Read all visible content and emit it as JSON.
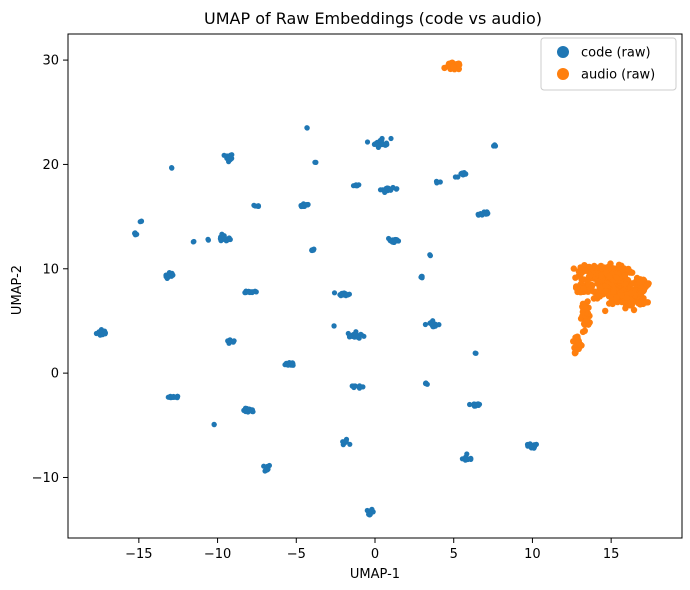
{
  "chart_data": {
    "type": "scatter",
    "title": "UMAP of Raw Embeddings (code vs audio)",
    "xlabel": "UMAP-1",
    "ylabel": "UMAP-2",
    "xlim": [
      -19.5,
      19.5
    ],
    "ylim": [
      -15.8,
      32.5
    ],
    "xticks": [
      -15,
      -10,
      -5,
      0,
      5,
      10,
      15
    ],
    "yticks": [
      -10,
      0,
      10,
      20,
      30
    ],
    "xtick_labels": [
      "−15",
      "−10",
      "−5",
      "0",
      "5",
      "10",
      "15"
    ],
    "ytick_labels": [
      "−10",
      "0",
      "10",
      "20",
      "30"
    ],
    "grid": false,
    "legend_position": "top-right",
    "series": [
      {
        "name": "code (raw)",
        "color": "#1f77b4",
        "clusters": [
          {
            "x": -17.3,
            "y": 3.9,
            "sx": 0.35,
            "sy": 0.35,
            "n": 14
          },
          {
            "x": -14.9,
            "y": 14.5,
            "sx": 0.1,
            "sy": 0.1,
            "n": 3
          },
          {
            "x": -15.2,
            "y": 13.4,
            "sx": 0.1,
            "sy": 0.1,
            "n": 4
          },
          {
            "x": -12.9,
            "y": 19.7,
            "sx": 0.05,
            "sy": 0.05,
            "n": 2
          },
          {
            "x": -13.0,
            "y": 9.3,
            "sx": 0.3,
            "sy": 0.3,
            "n": 12
          },
          {
            "x": -12.8,
            "y": -2.3,
            "sx": 0.3,
            "sy": 0.1,
            "n": 10
          },
          {
            "x": -11.5,
            "y": 12.6,
            "sx": 0.05,
            "sy": 0.05,
            "n": 2
          },
          {
            "x": -10.6,
            "y": 12.8,
            "sx": 0.05,
            "sy": 0.05,
            "n": 2
          },
          {
            "x": -10.2,
            "y": -4.9,
            "sx": 0.05,
            "sy": 0.05,
            "n": 2
          },
          {
            "x": -9.3,
            "y": 20.6,
            "sx": 0.25,
            "sy": 0.4,
            "n": 14
          },
          {
            "x": -9.6,
            "y": 12.9,
            "sx": 0.35,
            "sy": 0.3,
            "n": 16
          },
          {
            "x": -9.2,
            "y": 3.0,
            "sx": 0.3,
            "sy": 0.2,
            "n": 12
          },
          {
            "x": -8.0,
            "y": -3.6,
            "sx": 0.35,
            "sy": 0.2,
            "n": 12
          },
          {
            "x": -7.9,
            "y": 7.8,
            "sx": 0.35,
            "sy": 0.1,
            "n": 14
          },
          {
            "x": -7.5,
            "y": 16.0,
            "sx": 0.15,
            "sy": 0.15,
            "n": 6
          },
          {
            "x": -7.0,
            "y": -9.1,
            "sx": 0.35,
            "sy": 0.3,
            "n": 12
          },
          {
            "x": -4.5,
            "y": 16.1,
            "sx": 0.35,
            "sy": 0.2,
            "n": 14
          },
          {
            "x": -4.3,
            "y": 23.5,
            "sx": 0.05,
            "sy": 0.05,
            "n": 2
          },
          {
            "x": -5.3,
            "y": 0.9,
            "sx": 0.35,
            "sy": 0.2,
            "n": 12
          },
          {
            "x": -4.0,
            "y": 11.8,
            "sx": 0.15,
            "sy": 0.1,
            "n": 6
          },
          {
            "x": -3.8,
            "y": 20.2,
            "sx": 0.05,
            "sy": 0.05,
            "n": 2
          },
          {
            "x": -2.6,
            "y": 4.5,
            "sx": 0.05,
            "sy": 0.05,
            "n": 2
          },
          {
            "x": -2.0,
            "y": 7.6,
            "sx": 0.3,
            "sy": 0.15,
            "n": 14
          },
          {
            "x": -1.9,
            "y": -6.6,
            "sx": 0.2,
            "sy": 0.2,
            "n": 10
          },
          {
            "x": -1.2,
            "y": 3.6,
            "sx": 0.5,
            "sy": 0.3,
            "n": 16
          },
          {
            "x": -1.2,
            "y": 18.0,
            "sx": 0.15,
            "sy": 0.1,
            "n": 6
          },
          {
            "x": -1.3,
            "y": -1.3,
            "sx": 0.35,
            "sy": 0.15,
            "n": 10
          },
          {
            "x": 0.4,
            "y": 22.1,
            "sx": 0.55,
            "sy": 0.4,
            "n": 18
          },
          {
            "x": 0.9,
            "y": 17.6,
            "sx": 0.5,
            "sy": 0.15,
            "n": 14
          },
          {
            "x": 1.2,
            "y": 12.7,
            "sx": 0.4,
            "sy": 0.25,
            "n": 16
          },
          {
            "x": -0.3,
            "y": -13.3,
            "sx": 0.2,
            "sy": 0.2,
            "n": 12
          },
          {
            "x": 3.0,
            "y": 9.2,
            "sx": 0.1,
            "sy": 0.1,
            "n": 4
          },
          {
            "x": 3.5,
            "y": 11.3,
            "sx": 0.05,
            "sy": 0.05,
            "n": 2
          },
          {
            "x": 3.6,
            "y": 4.7,
            "sx": 0.45,
            "sy": 0.25,
            "n": 14
          },
          {
            "x": 3.2,
            "y": -1.0,
            "sx": 0.1,
            "sy": 0.05,
            "n": 4
          },
          {
            "x": 4.0,
            "y": 18.3,
            "sx": 0.15,
            "sy": 0.1,
            "n": 4
          },
          {
            "x": 5.6,
            "y": 19.0,
            "sx": 0.45,
            "sy": 0.2,
            "n": 12
          },
          {
            "x": 6.9,
            "y": 15.3,
            "sx": 0.4,
            "sy": 0.25,
            "n": 14
          },
          {
            "x": 6.4,
            "y": 1.9,
            "sx": 0.05,
            "sy": 0.05,
            "n": 2
          },
          {
            "x": 6.4,
            "y": -3.0,
            "sx": 0.35,
            "sy": 0.25,
            "n": 12
          },
          {
            "x": 5.9,
            "y": -8.2,
            "sx": 0.3,
            "sy": 0.25,
            "n": 10
          },
          {
            "x": 7.6,
            "y": 21.8,
            "sx": 0.1,
            "sy": 0.1,
            "n": 4
          },
          {
            "x": 9.9,
            "y": -7.0,
            "sx": 0.4,
            "sy": 0.2,
            "n": 16
          }
        ]
      },
      {
        "name": "audio (raw)",
        "color": "#ff7f0e",
        "clusters": [
          {
            "x": 5.0,
            "y": 29.4,
            "sx": 0.4,
            "sy": 0.3,
            "n": 40
          },
          {
            "x": 15.0,
            "y": 8.4,
            "sx": 1.2,
            "sy": 1.1,
            "n": 260
          },
          {
            "x": 14.5,
            "y": 9.6,
            "sx": 1.3,
            "sy": 0.7,
            "n": 160
          },
          {
            "x": 16.2,
            "y": 7.2,
            "sx": 0.9,
            "sy": 0.8,
            "n": 90
          },
          {
            "x": 13.2,
            "y": 8.1,
            "sx": 0.4,
            "sy": 0.3,
            "n": 40
          },
          {
            "x": 17.0,
            "y": 8.5,
            "sx": 0.4,
            "sy": 0.5,
            "n": 40
          },
          {
            "x": 13.4,
            "y": 5.5,
            "sx": 0.25,
            "sy": 1.0,
            "n": 50
          },
          {
            "x": 12.9,
            "y": 3.0,
            "sx": 0.15,
            "sy": 0.6,
            "n": 20
          },
          {
            "x": 12.7,
            "y": 1.9,
            "sx": 0.05,
            "sy": 0.1,
            "n": 3
          }
        ]
      }
    ]
  }
}
